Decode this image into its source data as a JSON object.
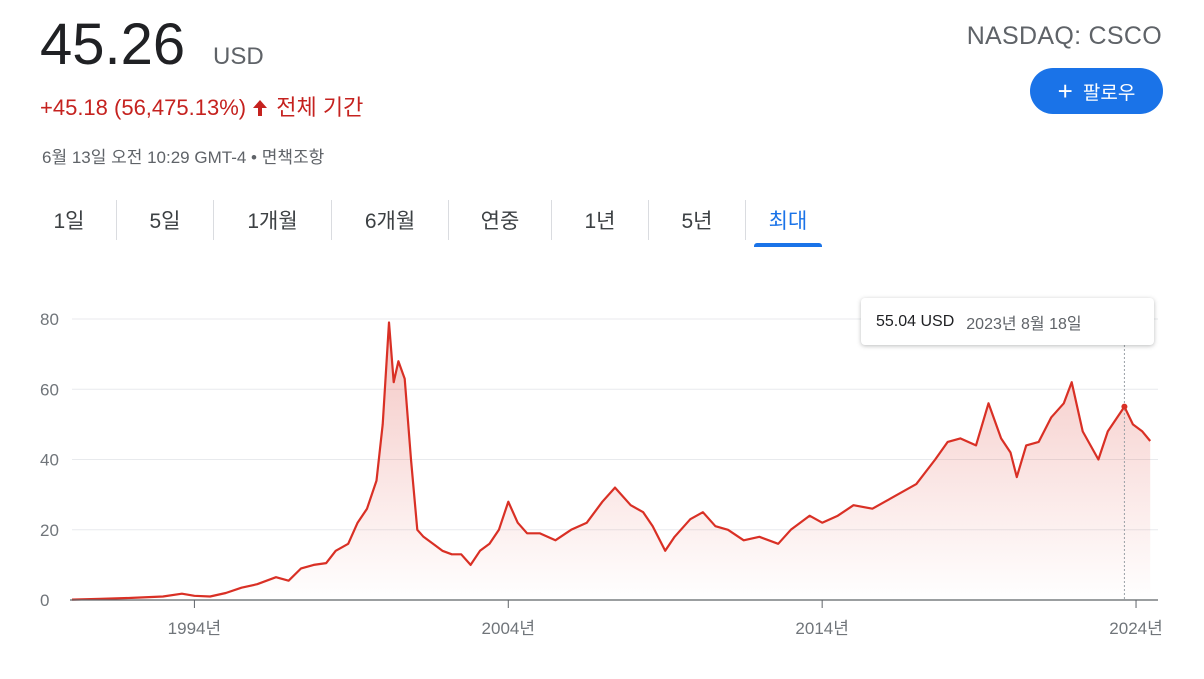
{
  "quote": {
    "price": "45.26",
    "currency": "USD",
    "change": "+45.18 (56,475.13%)",
    "change_period": "전체 기간",
    "timestamp": "6월 13일 오전 10:29 GMT-4 • 면책조항",
    "ticker": "NASDAQ: CSCO",
    "follow_label": "팔로우"
  },
  "tabs": [
    {
      "label": "1일"
    },
    {
      "label": "5일"
    },
    {
      "label": "1개월"
    },
    {
      "label": "6개월"
    },
    {
      "label": "연중"
    },
    {
      "label": "1년"
    },
    {
      "label": "5년"
    },
    {
      "label": "최대",
      "active": true
    }
  ],
  "tooltip": {
    "value": "55.04 USD",
    "date": "2023년 8월 18일"
  },
  "colors": {
    "line": "#d93025",
    "accent": "#1a73e8",
    "negative": "#c5221f"
  },
  "chart_data": {
    "type": "area",
    "title": "",
    "xlabel": "",
    "ylabel": "",
    "ylim": [
      0,
      80
    ],
    "yticks": [
      0,
      20,
      40,
      60,
      80
    ],
    "xtick_labels": [
      {
        "year": 1994,
        "label": "1994년"
      },
      {
        "year": 2004,
        "label": "2004년"
      },
      {
        "year": 2014,
        "label": "2014년"
      },
      {
        "year": 2024,
        "label": "2024년"
      }
    ],
    "xlim": [
      1990.1,
      2024.7
    ],
    "grid": true,
    "hover": {
      "x": 2023.63,
      "y": 55.04
    },
    "series": [
      {
        "x": [
          1990.1,
          1991.0,
          1992.0,
          1993.0,
          1993.6,
          1994.0,
          1994.5,
          1995.0,
          1995.5,
          1996.0,
          1996.6,
          1997.0,
          1997.4,
          1997.8,
          1998.2,
          1998.5,
          1998.9,
          1999.2,
          1999.5,
          1999.8,
          2000.0,
          2000.2,
          2000.35,
          2000.5,
          2000.7,
          2000.9,
          2001.1,
          2001.3,
          2001.6,
          2001.9,
          2002.2,
          2002.5,
          2002.8,
          2003.1,
          2003.4,
          2003.7,
          2004.0,
          2004.3,
          2004.6,
          2005.0,
          2005.5,
          2006.0,
          2006.5,
          2007.0,
          2007.4,
          2007.9,
          2008.3,
          2008.6,
          2009.0,
          2009.3,
          2009.8,
          2010.2,
          2010.6,
          2011.0,
          2011.5,
          2012.0,
          2012.6,
          2013.0,
          2013.6,
          2014.0,
          2014.5,
          2015.0,
          2015.6,
          2016.0,
          2016.6,
          2017.0,
          2017.6,
          2018.0,
          2018.4,
          2018.9,
          2019.3,
          2019.7,
          2020.0,
          2020.2,
          2020.5,
          2020.9,
          2021.3,
          2021.7,
          2021.95,
          2022.3,
          2022.8,
          2023.1,
          2023.63,
          2023.9,
          2024.2,
          2024.45
        ],
        "y": [
          0.1,
          0.3,
          0.6,
          1.0,
          1.8,
          1.2,
          1.0,
          2.0,
          3.5,
          4.5,
          6.5,
          5.5,
          9.0,
          10.0,
          10.5,
          14.0,
          16.0,
          22.0,
          26.0,
          34.0,
          50.0,
          79.0,
          62.0,
          68.0,
          63.0,
          40.0,
          20.0,
          18.0,
          16.0,
          14.0,
          13.0,
          13.0,
          10.0,
          14.0,
          16.0,
          20.0,
          28.0,
          22.0,
          19.0,
          19.0,
          17.0,
          20.0,
          22.0,
          28.0,
          32.0,
          27.0,
          25.0,
          21.0,
          14.0,
          18.0,
          23.0,
          25.0,
          21.0,
          20.0,
          17.0,
          18.0,
          16.0,
          20.0,
          24.0,
          22.0,
          24.0,
          27.0,
          26.0,
          28.0,
          31.0,
          33.0,
          40.0,
          45.0,
          46.0,
          44.0,
          56.0,
          46.0,
          42.0,
          35.0,
          44.0,
          45.0,
          52.0,
          56.0,
          62.0,
          48.0,
          40.0,
          48.0,
          55.04,
          50.0,
          48.0,
          45.26
        ]
      }
    ]
  }
}
